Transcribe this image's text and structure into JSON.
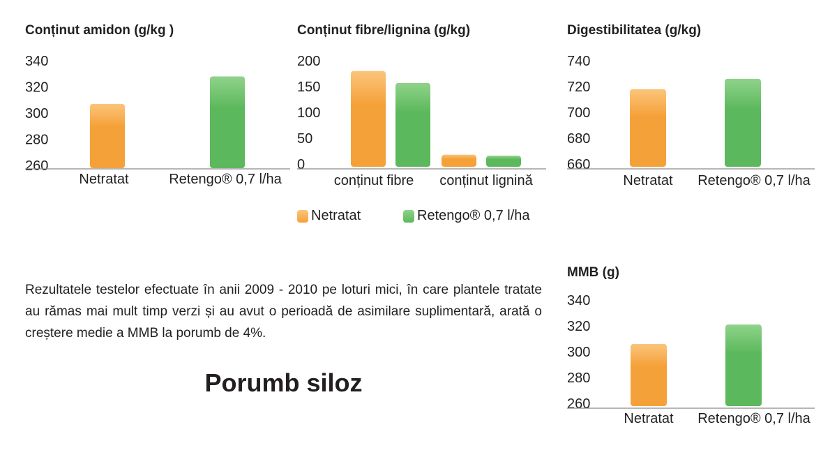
{
  "colors": {
    "netratat": "#f5a13a",
    "netratat_top": "#fbc57c",
    "retengo": "#5cb85c",
    "retengo_top": "#8fd38a",
    "axis": "#8a8a8a",
    "text": "#231f20"
  },
  "legend": {
    "items": [
      {
        "label": "Netratat",
        "color": "#f5a13a"
      },
      {
        "label": "Retengo® 0,7 l/ha",
        "color": "#5cb85c"
      }
    ]
  },
  "description": "Rezultatele testelor efectuate în anii 2009 - 2010 pe loturi mici, în care plantele tratate au rămas mai mult timp verzi și au avut o perioadă de asimilare suplimentară, arată o creștere medie a MMB la porumb de 4%.",
  "page_heading": "Porumb siloz",
  "chart_data": [
    {
      "type": "bar",
      "title": "Conținut amidon (g/kg )",
      "categories": [
        "Netratat",
        "Retengo® 0,7 l/ha"
      ],
      "series": [
        {
          "values": [
            307,
            328
          ]
        }
      ],
      "bar_colors": [
        "netratat",
        "retengo"
      ],
      "yticks": [
        260,
        280,
        300,
        320,
        340
      ],
      "ylim": [
        256,
        340
      ],
      "grid": false,
      "legend": "none"
    },
    {
      "type": "bar",
      "title": "Conținut fibre/lignina (g/kg)",
      "categories": [
        "conținut fibre",
        "conținut lignină"
      ],
      "series": [
        {
          "name": "Netratat",
          "values": [
            180,
            18
          ]
        },
        {
          "name": "Retengo® 0,7 l/ha",
          "values": [
            157,
            16
          ]
        }
      ],
      "bar_colors": [
        "netratat",
        "retengo"
      ],
      "yticks": [
        0,
        50,
        100,
        150,
        200
      ],
      "ylim": [
        -12,
        200
      ],
      "grid": false,
      "legend": "bottom"
    },
    {
      "type": "bar",
      "title": "Digestibilitatea (g/kg)",
      "categories": [
        "Netratat",
        "Retengo® 0,7 l/ha"
      ],
      "series": [
        {
          "values": [
            718,
            726
          ]
        }
      ],
      "bar_colors": [
        "netratat",
        "retengo"
      ],
      "yticks": [
        660,
        680,
        700,
        720,
        740
      ],
      "ylim": [
        655,
        740
      ],
      "grid": false,
      "legend": "none"
    },
    {
      "type": "bar",
      "title": "MMB (g)",
      "categories": [
        "Netratat",
        "Retengo® 0,7 l/ha"
      ],
      "series": [
        {
          "values": [
            306,
            321
          ]
        }
      ],
      "bar_colors": [
        "netratat",
        "retengo"
      ],
      "yticks": [
        260,
        280,
        300,
        320,
        340
      ],
      "ylim": [
        255,
        340
      ],
      "grid": false,
      "legend": "none"
    }
  ]
}
